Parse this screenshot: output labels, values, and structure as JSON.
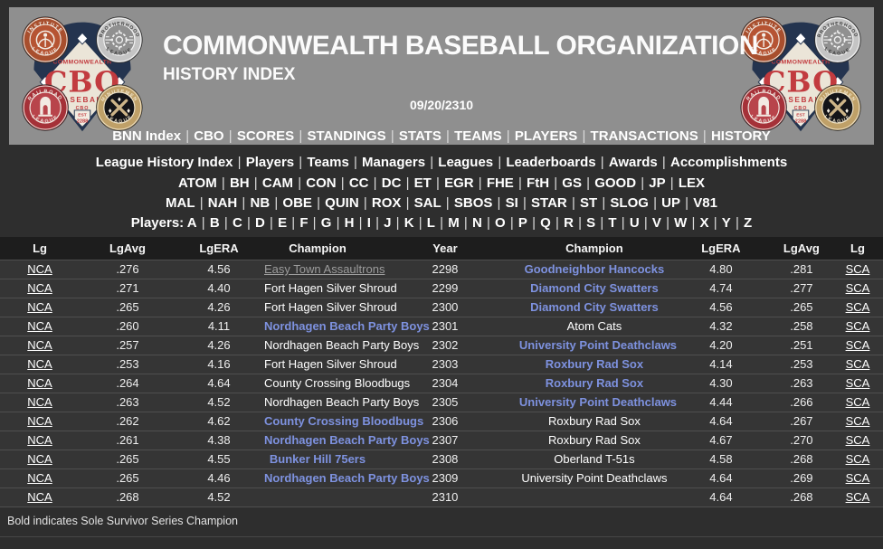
{
  "colors": {
    "page_bg": "#2e2e2e",
    "masthead_bg": "#8f8f8f",
    "row_bg": "#353535",
    "table_header_bg": "#1d1d1d",
    "champion_link": "#7e92e0",
    "visited_link": "#9d9d9d",
    "link_white": "#ffffff",
    "logo_navy": "#24344f",
    "logo_red": "#c23b3f"
  },
  "header": {
    "title": "COMMONWEALTH BASEBALL ORGANIZATION",
    "subtitle": "HISTORY INDEX",
    "date": "09/20/2310",
    "logo": {
      "org_name": "COMMONWEALTH",
      "org_abbr": "CBO",
      "org_word": "BASEBALL",
      "org_mark": "CBO",
      "est_label": "EST",
      "est_year": "2288",
      "badges": [
        {
          "name": "INSTITUTE",
          "word": "LEAGUE",
          "ring": "#a84f2e",
          "inner": "#b65433"
        },
        {
          "name": "BROTHERHOOD",
          "word": "LEAGUE",
          "ring": "#c4c4c4",
          "inner": "#909090"
        },
        {
          "name": "RAILROAD",
          "word": "LEAGUE",
          "ring": "#a53138",
          "inner": "#b8444b"
        },
        {
          "name": "MINUTEMEN",
          "word": "LEAGUE",
          "ring": "#bfa068",
          "inner": "#141418"
        }
      ]
    }
  },
  "nav_main": {
    "items": [
      "BNN Index",
      "CBO",
      "SCORES",
      "STANDINGS",
      "STATS",
      "TEAMS",
      "PLAYERS",
      "TRANSACTIONS",
      "HISTORY"
    ]
  },
  "nav_history": {
    "items": [
      "League History Index",
      "Players",
      "Teams",
      "Managers",
      "Leagues",
      "Leaderboards",
      "Awards",
      "Accomplishments"
    ]
  },
  "league_index": {
    "row1": [
      "ATOM",
      "BH",
      "CAM",
      "CON",
      "CC",
      "DC",
      "ET",
      "EGR",
      "FHE",
      "FtH",
      "GS",
      "GOOD",
      "JP",
      "LEX"
    ],
    "row2": [
      "MAL",
      "NAH",
      "NB",
      "OBE",
      "QUIN",
      "ROX",
      "SAL",
      "SBOS",
      "SI",
      "STAR",
      "ST",
      "SLOG",
      "UP",
      "V81"
    ]
  },
  "players_index": {
    "label": "Players:",
    "letters": [
      "A",
      "B",
      "C",
      "D",
      "E",
      "F",
      "G",
      "H",
      "I",
      "J",
      "K",
      "L",
      "M",
      "N",
      "O",
      "P",
      "Q",
      "R",
      "S",
      "T",
      "U",
      "V",
      "W",
      "X",
      "Y",
      "Z"
    ]
  },
  "table": {
    "headers": [
      "Lg",
      "LgAvg",
      "LgERA",
      "Champion",
      "Year",
      "Champion",
      "LgERA",
      "LgAvg",
      "Lg"
    ],
    "rows": [
      {
        "lg_left": "NCA",
        "lgavg_left": ".276",
        "lgera_left": "4.56",
        "champion_left": "Easy Town Assaultrons",
        "champion_left_style": "visited",
        "year": "2298",
        "champion_right": "Goodneighbor Hancocks",
        "champion_right_style": "champion",
        "lgera_right": "4.80",
        "lgavg_right": ".281",
        "lg_right": "SCA"
      },
      {
        "lg_left": "NCA",
        "lgavg_left": ".271",
        "lgera_left": "4.40",
        "champion_left": "Fort Hagen Silver Shroud",
        "champion_left_style": "plain",
        "year": "2299",
        "champion_right": "Diamond City Swatters",
        "champion_right_style": "champion",
        "lgera_right": "4.74",
        "lgavg_right": ".277",
        "lg_right": "SCA"
      },
      {
        "lg_left": "NCA",
        "lgavg_left": ".265",
        "lgera_left": "4.26",
        "champion_left": "Fort Hagen Silver Shroud",
        "champion_left_style": "plain",
        "year": "2300",
        "champion_right": "Diamond City Swatters",
        "champion_right_style": "champion",
        "lgera_right": "4.56",
        "lgavg_right": ".265",
        "lg_right": "SCA"
      },
      {
        "lg_left": "NCA",
        "lgavg_left": ".260",
        "lgera_left": "4.11",
        "champion_left": "Nordhagen Beach Party Boys",
        "champion_left_style": "champion",
        "year": "2301",
        "champion_right": "Atom Cats",
        "champion_right_style": "plain",
        "lgera_right": "4.32",
        "lgavg_right": ".258",
        "lg_right": "SCA"
      },
      {
        "lg_left": "NCA",
        "lgavg_left": ".257",
        "lgera_left": "4.26",
        "champion_left": "Nordhagen Beach Party Boys",
        "champion_left_style": "plain",
        "year": "2302",
        "champion_right": "University Point Deathclaws",
        "champion_right_style": "champion",
        "lgera_right": "4.20",
        "lgavg_right": ".251",
        "lg_right": "SCA"
      },
      {
        "lg_left": "NCA",
        "lgavg_left": ".253",
        "lgera_left": "4.16",
        "champion_left": "Fort Hagen Silver Shroud",
        "champion_left_style": "plain",
        "year": "2303",
        "champion_right": "Roxbury Rad Sox",
        "champion_right_style": "champion",
        "lgera_right": "4.14",
        "lgavg_right": ".253",
        "lg_right": "SCA"
      },
      {
        "lg_left": "NCA",
        "lgavg_left": ".264",
        "lgera_left": "4.64",
        "champion_left": "County Crossing Bloodbugs",
        "champion_left_style": "plain",
        "year": "2304",
        "champion_right": "Roxbury Rad Sox",
        "champion_right_style": "champion",
        "lgera_right": "4.30",
        "lgavg_right": ".263",
        "lg_right": "SCA"
      },
      {
        "lg_left": "NCA",
        "lgavg_left": ".263",
        "lgera_left": "4.52",
        "champion_left": "Nordhagen Beach Party Boys",
        "champion_left_style": "plain",
        "year": "2305",
        "champion_right": "University Point Deathclaws",
        "champion_right_style": "champion",
        "lgera_right": "4.44",
        "lgavg_right": ".266",
        "lg_right": "SCA"
      },
      {
        "lg_left": "NCA",
        "lgavg_left": ".262",
        "lgera_left": "4.62",
        "champion_left": "County Crossing Bloodbugs",
        "champion_left_style": "champion",
        "year": "2306",
        "champion_right": "Roxbury Rad Sox",
        "champion_right_style": "plain",
        "lgera_right": "4.64",
        "lgavg_right": ".267",
        "lg_right": "SCA"
      },
      {
        "lg_left": "NCA",
        "lgavg_left": ".261",
        "lgera_left": "4.38",
        "champion_left": "Nordhagen Beach Party Boys",
        "champion_left_style": "champion",
        "year": "2307",
        "champion_right": "Roxbury Rad Sox",
        "champion_right_style": "plain",
        "lgera_right": "4.67",
        "lgavg_right": ".270",
        "lg_right": "SCA"
      },
      {
        "lg_left": "NCA",
        "lgavg_left": ".265",
        "lgera_left": "4.55",
        "champion_left": "Bunker Hill 75ers",
        "champion_left_style": "champion",
        "year": "2308",
        "champion_right": "Oberland T-51s",
        "champion_right_style": "plain",
        "lgera_right": "4.58",
        "lgavg_right": ".268",
        "lg_right": "SCA"
      },
      {
        "lg_left": "NCA",
        "lgavg_left": ".265",
        "lgera_left": "4.46",
        "champion_left": "Nordhagen Beach Party Boys",
        "champion_left_style": "champion",
        "year": "2309",
        "champion_right": "University Point Deathclaws",
        "champion_right_style": "plain",
        "lgera_right": "4.64",
        "lgavg_right": ".269",
        "lg_right": "SCA"
      },
      {
        "lg_left": "NCA",
        "lgavg_left": ".268",
        "lgera_left": "4.52",
        "champion_left": "",
        "champion_left_style": "",
        "year": "2310",
        "champion_right": "",
        "champion_right_style": "",
        "lgera_right": "4.64",
        "lgavg_right": ".268",
        "lg_right": "SCA"
      }
    ]
  },
  "footer": {
    "note": "Bold indicates Sole Survivor Series Champion"
  }
}
